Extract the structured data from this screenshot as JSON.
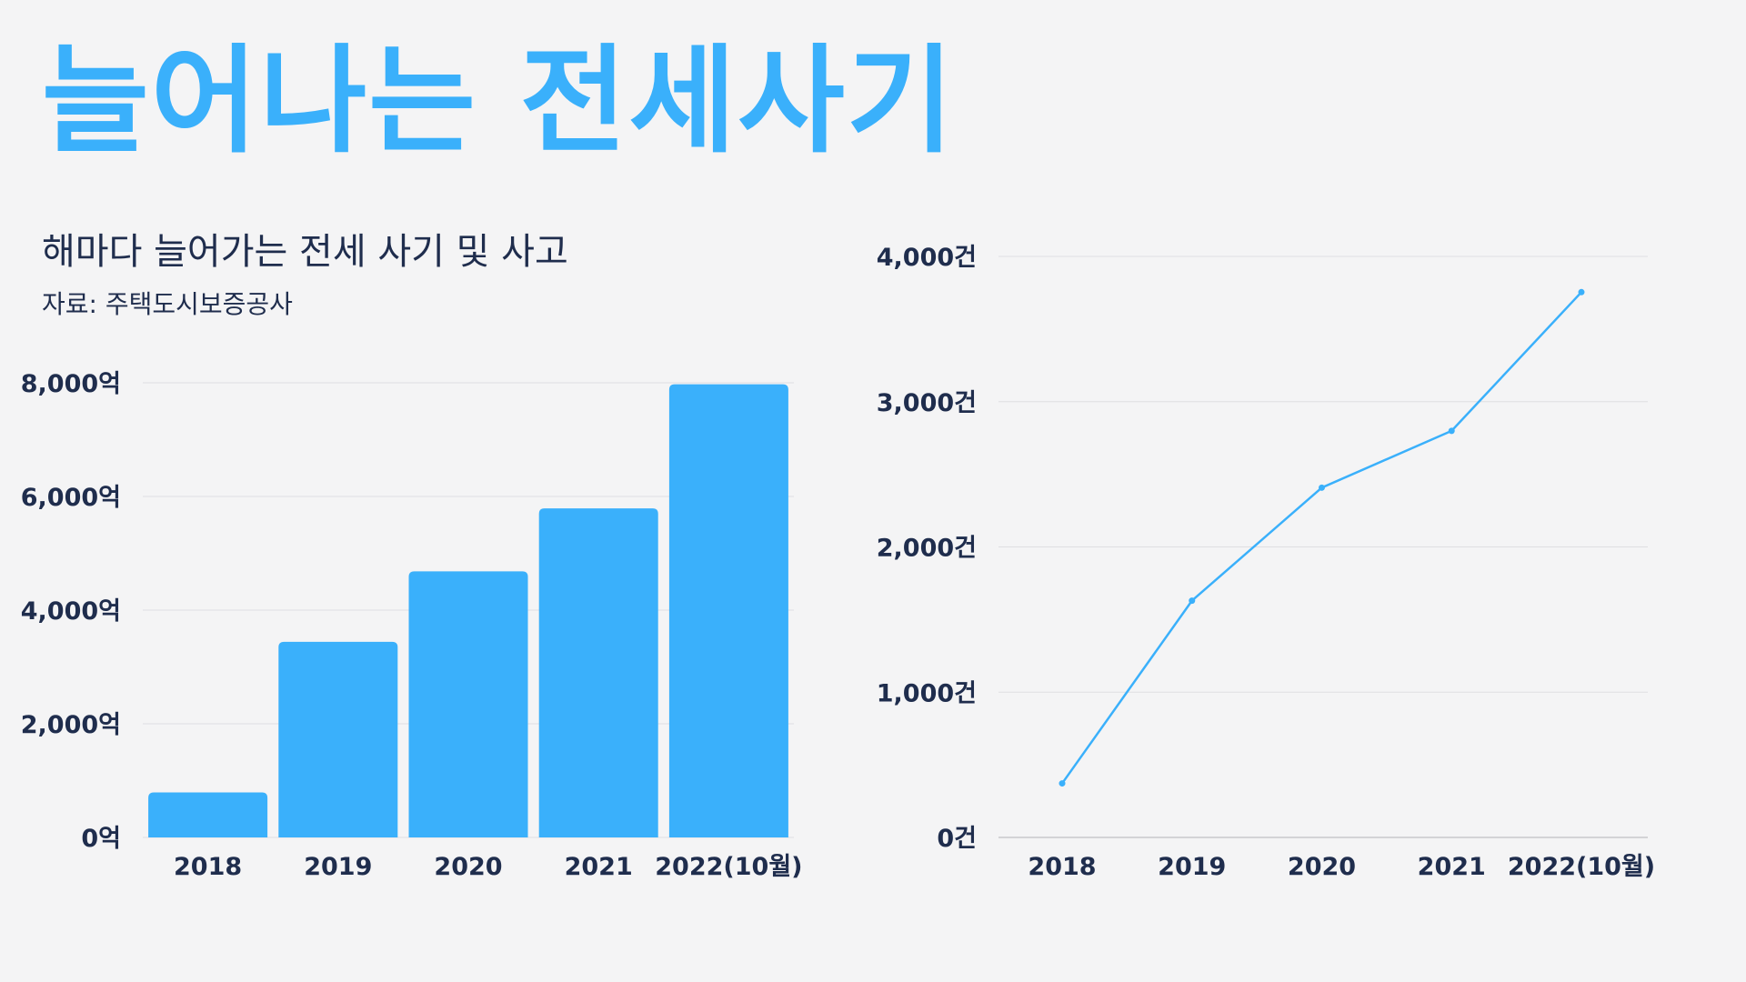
{
  "title": "늘어나는 전세사기",
  "subtitle": "해마다 늘어가는 전세 사기 및 사고",
  "source": "자료: 주택도시보증공사",
  "colors": {
    "accent": "#3ab0fb",
    "text": "#1f2d4d",
    "grid": "#dedee2",
    "background": "#f4f4f5"
  },
  "chart_data": [
    {
      "type": "bar",
      "categories": [
        "2018",
        "2019",
        "2020",
        "2021",
        "2022(10월)"
      ],
      "values": [
        792,
        3442,
        4682,
        5790,
        7974
      ],
      "ylim": [
        0,
        8000
      ],
      "yticks": [
        0,
        2000,
        4000,
        6000,
        8000
      ],
      "ytick_labels": [
        "0억",
        "2,000억",
        "4,000억",
        "6,000억",
        "8,000억"
      ],
      "grid": true
    },
    {
      "type": "line",
      "categories": [
        "2018",
        "2019",
        "2020",
        "2021",
        "2022(10월)"
      ],
      "values": [
        372,
        1630,
        2408,
        2799,
        3754
      ],
      "ylim": [
        0,
        4000
      ],
      "yticks": [
        0,
        1000,
        2000,
        3000,
        4000
      ],
      "ytick_labels": [
        "0건",
        "1,000건",
        "2,000건",
        "3,000건",
        "4,000건"
      ],
      "grid": true
    }
  ]
}
